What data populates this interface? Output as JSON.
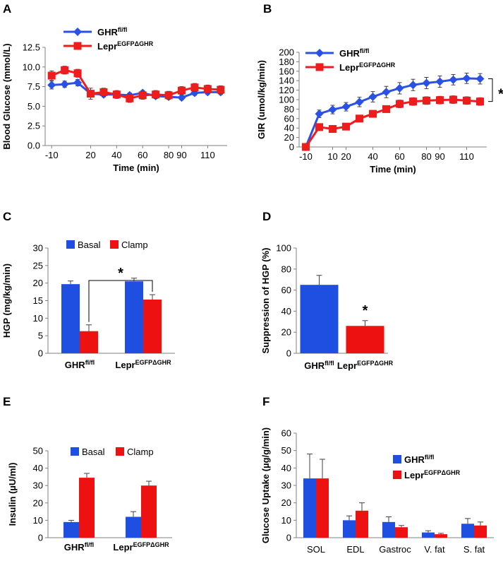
{
  "colors": {
    "blue": "#1f4fe0",
    "red": "#ee1111",
    "line_blue": "#2b50e6",
    "line_red": "#ee1c1c",
    "axis": "#808080",
    "error": "#404040"
  },
  "chart_data": [
    {
      "id": "A",
      "type": "line",
      "panel_label": "A",
      "xlabel": "Time (min)",
      "ylabel": "Blood Glucose (mmol/L)",
      "xlim": [
        -15,
        125
      ],
      "ylim": [
        0,
        12.5
      ],
      "xticks": [
        -10,
        20,
        40,
        60,
        80,
        90,
        110
      ],
      "yticks": [
        "0.0",
        "2.5",
        "5.0",
        "7.5",
        "10.0",
        "12.5"
      ],
      "legend": [
        {
          "base": "GHR",
          "sup": "fl/fl",
          "color": "#2b50e6",
          "marker": "diamond"
        },
        {
          "base": "Lepr",
          "sup": "EGFPΔGHR",
          "color": "#ee1c1c",
          "marker": "square"
        }
      ],
      "series": [
        {
          "name": "GHRfl/fl",
          "x": [
            -10,
            0,
            10,
            20,
            30,
            40,
            50,
            60,
            70,
            80,
            90,
            100,
            110,
            120
          ],
          "y": [
            7.7,
            7.8,
            8.0,
            6.6,
            6.5,
            6.5,
            6.4,
            6.7,
            6.3,
            6.2,
            6.1,
            6.7,
            6.8,
            6.8
          ],
          "err": [
            0.5,
            0.4,
            0.4,
            0.4,
            0.3,
            0.3,
            0.3,
            0.3,
            0.3,
            0.3,
            0.3,
            0.3,
            0.3,
            0.3
          ]
        },
        {
          "name": "LeprEGFPΔGHR",
          "x": [
            -10,
            0,
            10,
            20,
            30,
            40,
            50,
            60,
            70,
            80,
            90,
            100,
            110,
            120
          ],
          "y": [
            8.9,
            9.6,
            9.2,
            6.6,
            6.8,
            6.5,
            6.0,
            6.4,
            6.5,
            6.4,
            7.0,
            7.4,
            7.2,
            7.1
          ],
          "err": [
            0.6,
            0.5,
            0.5,
            0.7,
            0.5,
            0.5,
            0.5,
            0.5,
            0.5,
            0.5,
            0.5,
            0.5,
            0.5,
            0.5
          ]
        }
      ]
    },
    {
      "id": "B",
      "type": "line",
      "panel_label": "B",
      "xlabel": "Time (min)",
      "ylabel": "GIR (umol/kg/min)",
      "xlim": [
        -15,
        125
      ],
      "ylim": [
        0,
        200
      ],
      "xticks": [
        -10,
        10,
        20,
        40,
        60,
        80,
        90,
        110
      ],
      "yticks": [
        "0",
        "20",
        "40",
        "60",
        "80",
        "100",
        "120",
        "140",
        "160",
        "180",
        "200"
      ],
      "significance": "*",
      "legend": [
        {
          "base": "GHR",
          "sup": "fl/fl",
          "color": "#2b50e6",
          "marker": "diamond"
        },
        {
          "base": "Lepr",
          "sup": "EGFPΔGHR",
          "color": "#ee1c1c",
          "marker": "square"
        }
      ],
      "series": [
        {
          "name": "GHRfl/fl",
          "x": [
            -10,
            0,
            10,
            20,
            30,
            40,
            50,
            60,
            70,
            80,
            90,
            100,
            110,
            120
          ],
          "y": [
            0,
            70,
            79,
            85,
            95,
            106,
            116,
            124,
            131,
            135,
            138,
            142,
            145,
            144
          ],
          "err": [
            0,
            8,
            9,
            9,
            10,
            11,
            12,
            12,
            12,
            12,
            12,
            11,
            11,
            11
          ]
        },
        {
          "name": "LeprEGFPΔGHR",
          "x": [
            -10,
            0,
            10,
            20,
            30,
            40,
            50,
            60,
            70,
            80,
            90,
            100,
            110,
            120
          ],
          "y": [
            0,
            42,
            38,
            43,
            60,
            70,
            80,
            91,
            96,
            98,
            99,
            100,
            98,
            96
          ],
          "err": [
            0,
            6,
            6,
            6,
            7,
            7,
            7,
            8,
            8,
            8,
            8,
            8,
            8,
            8
          ]
        }
      ]
    },
    {
      "id": "C",
      "type": "bar",
      "panel_label": "C",
      "ylabel": "HGP (mg/kg/min)",
      "ylim": [
        0,
        30
      ],
      "yticks": [
        "0",
        "5",
        "10",
        "15",
        "20",
        "25",
        "30"
      ],
      "categories": [
        {
          "base": "GHR",
          "sup": "fl/fl"
        },
        {
          "base": "Lepr",
          "sup": "EGFPΔGHR"
        }
      ],
      "legend": [
        {
          "label": "Basal",
          "color": "#1f4fe0"
        },
        {
          "label": "Clamp",
          "color": "#ee1111"
        }
      ],
      "significance": "*",
      "series": [
        {
          "name": "Basal",
          "values": [
            19.7,
            20.5
          ],
          "err": [
            0.9,
            0.9
          ]
        },
        {
          "name": "Clamp",
          "values": [
            6.3,
            15.3
          ],
          "err": [
            1.8,
            1.4
          ]
        }
      ]
    },
    {
      "id": "D",
      "type": "bar",
      "panel_label": "D",
      "ylabel": "Suppression of HGP (%)",
      "ylim": [
        0,
        100
      ],
      "yticks": [
        "0",
        "20",
        "40",
        "60",
        "80",
        "100"
      ],
      "categories": [
        {
          "base": "GHR",
          "sup": "fl/fl"
        },
        {
          "base": "Lepr",
          "sup": "EGFPΔGHR"
        }
      ],
      "significance": "*",
      "series": [
        {
          "name": "Suppression",
          "values": [
            65,
            26
          ],
          "err": [
            9,
            5
          ],
          "colors": [
            "#1f4fe0",
            "#ee1111"
          ]
        }
      ]
    },
    {
      "id": "E",
      "type": "bar",
      "panel_label": "E",
      "ylabel": "Insulin (µU/ml)",
      "ylim": [
        0,
        50
      ],
      "yticks": [
        "0",
        "10",
        "20",
        "30",
        "40",
        "50"
      ],
      "categories": [
        {
          "base": "GHR",
          "sup": "fl/fl"
        },
        {
          "base": "Lepr",
          "sup": "EGFPΔGHR"
        }
      ],
      "legend": [
        {
          "label": "Basal",
          "color": "#1f4fe0"
        },
        {
          "label": "Clamp",
          "color": "#ee1111"
        }
      ],
      "series": [
        {
          "name": "Basal",
          "values": [
            9,
            12
          ],
          "err": [
            1,
            3
          ]
        },
        {
          "name": "Clamp",
          "values": [
            34.5,
            30
          ],
          "err": [
            2.5,
            2.5
          ]
        }
      ]
    },
    {
      "id": "F",
      "type": "bar",
      "panel_label": "F",
      "ylabel": "Glucose Uptake (µg/g/min)",
      "ylim": [
        0,
        60
      ],
      "yticks": [
        "0",
        "10",
        "20",
        "30",
        "40",
        "50",
        "60"
      ],
      "categories": [
        {
          "base": "SOL"
        },
        {
          "base": "EDL"
        },
        {
          "base": "Gastroc"
        },
        {
          "base": "V. fat"
        },
        {
          "base": "S. fat"
        }
      ],
      "legend": [
        {
          "base": "GHR",
          "sup": "fl/fl",
          "color": "#1f4fe0"
        },
        {
          "base": "Lepr",
          "sup": "EGFPΔGHR",
          "color": "#ee1111"
        }
      ],
      "series": [
        {
          "name": "GHRfl/fl",
          "values": [
            34,
            10,
            9,
            3,
            8
          ],
          "err": [
            14,
            2.5,
            3,
            1,
            3
          ]
        },
        {
          "name": "LeprEGFPΔGHR",
          "values": [
            34,
            15.5,
            6,
            2,
            7
          ],
          "err": [
            11,
            4.5,
            1,
            0.5,
            2
          ]
        }
      ]
    }
  ]
}
